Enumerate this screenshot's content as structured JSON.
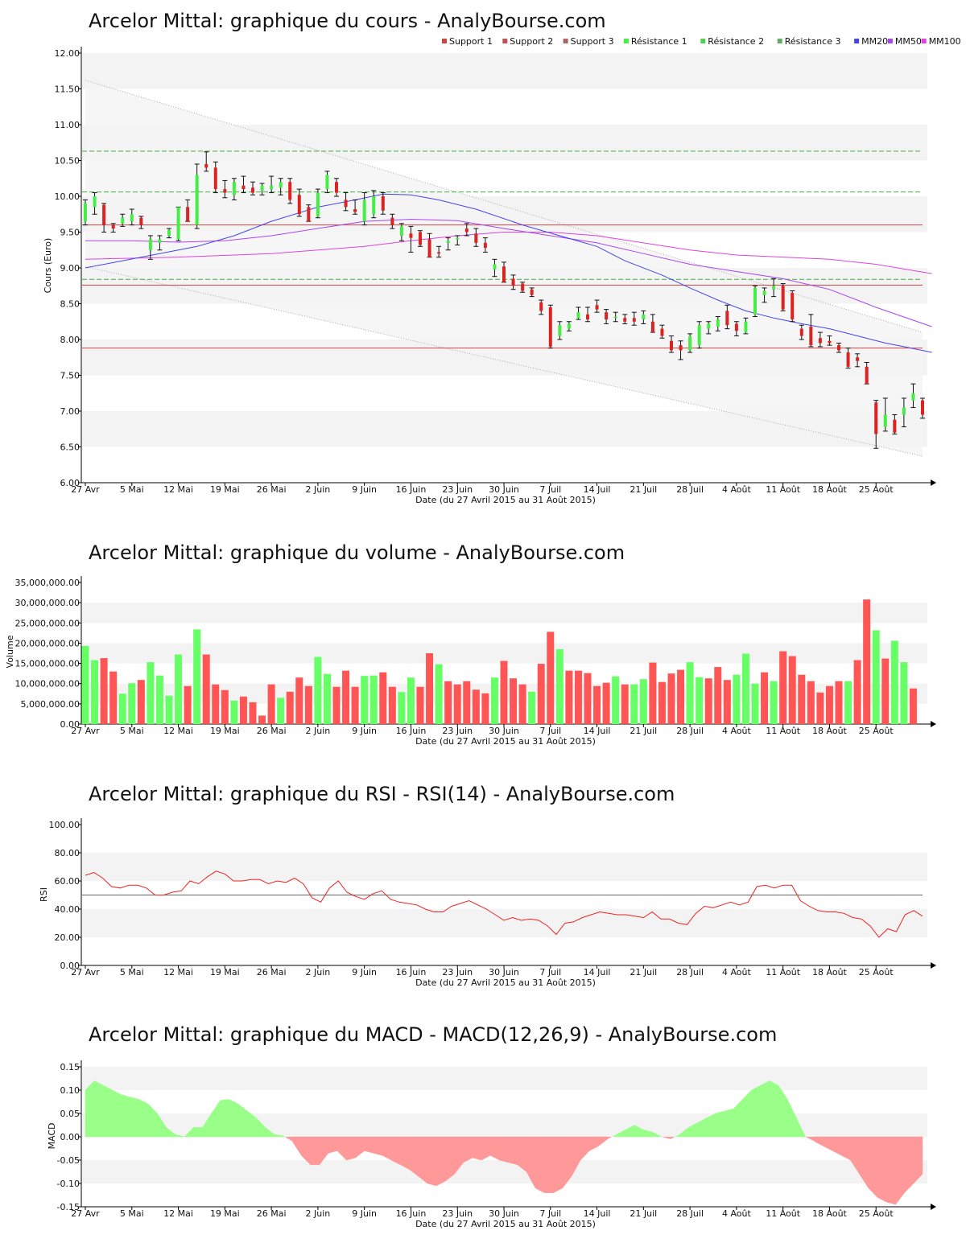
{
  "colors": {
    "up": "#44ee44",
    "down": "#dd2222",
    "wick": "#111111",
    "support": "#cc4444",
    "resistance": "#44aa44",
    "mm20": "#4444ee",
    "mm50": "#aa44ee",
    "mm100": "#dd44dd",
    "vol_up": "#66ff66",
    "vol_down": "#ff5555",
    "rsi": "#ee2222",
    "macd_pos": "#99ff88",
    "macd_neg": "#ff9999",
    "band_light": "#f3f3f3",
    "channel": "#f4f4f4"
  },
  "x_labels": [
    "27 Avr",
    "5 Mai",
    "12 Mai",
    "19 Mai",
    "26 Mai",
    "2 Juin",
    "9 Juin",
    "16 Juin",
    "23 Juin",
    "30 Juin",
    "7 Juil",
    "14 Juil",
    "21 Juil",
    "28 Juil",
    "4 Août",
    "11 Août",
    "18 Août",
    "25 Août"
  ],
  "x_label_days": [
    0,
    5,
    10,
    15,
    20,
    25,
    30,
    35,
    40,
    45,
    50,
    55,
    60,
    65,
    70,
    75,
    80,
    85
  ],
  "date_caption": "Date (du 27 Avril 2015 au 31 Août 2015)",
  "chart_data": [
    {
      "type": "candlestick",
      "title": "Arcelor Mittal: graphique du cours - AnalyBourse.com",
      "ylabel": "Cours (Euro)",
      "ylim": [
        6.0,
        12.0
      ],
      "yticks": [
        "6.00",
        "6.50",
        "7.00",
        "7.50",
        "8.00",
        "8.50",
        "9.00",
        "9.50",
        "10.00",
        "10.50",
        "11.00",
        "11.50",
        "12.00"
      ],
      "legend": [
        "Support 1",
        "Support 2",
        "Support 3",
        "Résistance 1",
        "Résistance 2",
        "Résistance 3",
        "MM20",
        "MM50",
        "MM100"
      ],
      "legend_position": "top-right",
      "support_levels": [
        9.6,
        8.76,
        7.88
      ],
      "resistance_levels": [
        10.63,
        10.06,
        8.84
      ],
      "channel": {
        "upper": [
          11.62,
          8.1
        ],
        "lower": [
          9.02,
          6.37
        ]
      },
      "ohlc": [
        [
          9.65,
          9.95,
          9.6,
          9.9
        ],
        [
          9.85,
          10.05,
          9.75,
          10.0
        ],
        [
          9.88,
          9.9,
          9.5,
          9.6
        ],
        [
          9.6,
          9.62,
          9.5,
          9.55
        ],
        [
          9.62,
          9.75,
          9.58,
          9.7
        ],
        [
          9.65,
          9.82,
          9.6,
          9.75
        ],
        [
          9.7,
          9.72,
          9.55,
          9.6
        ],
        [
          9.25,
          9.45,
          9.12,
          9.4
        ],
        [
          9.35,
          9.45,
          9.25,
          9.4
        ],
        [
          9.45,
          9.55,
          9.42,
          9.53
        ],
        [
          9.4,
          9.85,
          9.38,
          9.85
        ],
        [
          9.85,
          9.95,
          9.65,
          9.65
        ],
        [
          9.6,
          10.45,
          9.55,
          10.3
        ],
        [
          10.45,
          10.62,
          10.35,
          10.4
        ],
        [
          10.4,
          10.48,
          10.05,
          10.1
        ],
        [
          10.1,
          10.22,
          9.98,
          10.05
        ],
        [
          10.02,
          10.25,
          9.95,
          10.2
        ],
        [
          10.15,
          10.28,
          10.05,
          10.1
        ],
        [
          10.12,
          10.2,
          10.02,
          10.05
        ],
        [
          10.08,
          10.18,
          10.02,
          10.15
        ],
        [
          10.1,
          10.28,
          10.05,
          10.15
        ],
        [
          10.12,
          10.25,
          10.02,
          10.2
        ],
        [
          10.2,
          10.25,
          9.9,
          9.95
        ],
        [
          10.02,
          10.1,
          9.72,
          9.75
        ],
        [
          9.85,
          9.88,
          9.65,
          9.65
        ],
        [
          9.72,
          10.1,
          9.7,
          10.05
        ],
        [
          10.1,
          10.35,
          10.05,
          10.3
        ],
        [
          10.2,
          10.25,
          10.0,
          10.05
        ],
        [
          9.95,
          10.05,
          9.8,
          9.85
        ],
        [
          9.82,
          9.95,
          9.75,
          9.78
        ],
        [
          9.65,
          10.05,
          9.6,
          9.95
        ],
        [
          9.75,
          10.08,
          9.7,
          10.0
        ],
        [
          10.0,
          10.05,
          9.75,
          9.8
        ],
        [
          9.7,
          9.75,
          9.55,
          9.6
        ],
        [
          9.45,
          9.62,
          9.38,
          9.58
        ],
        [
          9.48,
          9.58,
          9.22,
          9.42
        ],
        [
          9.5,
          9.52,
          9.3,
          9.32
        ],
        [
          9.4,
          9.48,
          9.15,
          9.15
        ],
        [
          9.22,
          9.3,
          9.15,
          9.2
        ],
        [
          9.35,
          9.42,
          9.25,
          9.38
        ],
        [
          9.4,
          9.45,
          9.32,
          9.42
        ],
        [
          9.55,
          9.62,
          9.45,
          9.5
        ],
        [
          9.48,
          9.55,
          9.3,
          9.35
        ],
        [
          9.35,
          9.42,
          9.22,
          9.28
        ],
        [
          8.98,
          9.12,
          8.88,
          9.05
        ],
        [
          9.02,
          9.08,
          8.8,
          8.8
        ],
        [
          8.85,
          8.9,
          8.7,
          8.75
        ],
        [
          8.78,
          8.8,
          8.66,
          8.68
        ],
        [
          8.7,
          8.72,
          8.6,
          8.62
        ],
        [
          8.52,
          8.55,
          8.35,
          8.4
        ],
        [
          8.45,
          8.48,
          7.88,
          7.9
        ],
        [
          8.05,
          8.25,
          8.0,
          8.2
        ],
        [
          8.15,
          8.25,
          8.12,
          8.22
        ],
        [
          8.3,
          8.45,
          8.28,
          8.38
        ],
        [
          8.35,
          8.45,
          8.25,
          8.28
        ],
        [
          8.48,
          8.55,
          8.38,
          8.42
        ],
        [
          8.38,
          8.42,
          8.22,
          8.28
        ],
        [
          8.3,
          8.38,
          8.25,
          8.32
        ],
        [
          8.3,
          8.35,
          8.22,
          8.25
        ],
        [
          8.3,
          8.38,
          8.2,
          8.25
        ],
        [
          8.28,
          8.4,
          8.22,
          8.35
        ],
        [
          8.25,
          8.35,
          8.1,
          8.1
        ],
        [
          8.15,
          8.2,
          8.02,
          8.05
        ],
        [
          7.98,
          8.05,
          7.82,
          7.85
        ],
        [
          7.92,
          7.98,
          7.72,
          7.85
        ],
        [
          7.85,
          8.08,
          7.82,
          8.05
        ],
        [
          7.92,
          8.25,
          7.88,
          8.2
        ],
        [
          8.15,
          8.25,
          8.08,
          8.22
        ],
        [
          8.18,
          8.32,
          8.12,
          8.28
        ],
        [
          8.4,
          8.48,
          8.15,
          8.2
        ],
        [
          8.22,
          8.25,
          8.05,
          8.12
        ],
        [
          8.1,
          8.3,
          8.08,
          8.25
        ],
        [
          8.35,
          8.75,
          8.32,
          8.72
        ],
        [
          8.62,
          8.72,
          8.52,
          8.68
        ],
        [
          8.7,
          8.85,
          8.6,
          8.75
        ],
        [
          8.75,
          8.78,
          8.4,
          8.42
        ],
        [
          8.65,
          8.68,
          8.25,
          8.28
        ],
        [
          8.15,
          8.2,
          8.0,
          8.05
        ],
        [
          8.18,
          8.35,
          7.9,
          7.92
        ],
        [
          8.02,
          8.1,
          7.9,
          7.95
        ],
        [
          7.98,
          8.05,
          7.92,
          7.95
        ],
        [
          7.92,
          7.95,
          7.82,
          7.85
        ],
        [
          7.82,
          7.88,
          7.6,
          7.62
        ],
        [
          7.75,
          7.8,
          7.62,
          7.7
        ],
        [
          7.62,
          7.68,
          7.38,
          7.38
        ],
        [
          7.12,
          7.15,
          6.48,
          6.68
        ],
        [
          6.78,
          7.18,
          6.72,
          6.95
        ],
        [
          6.88,
          6.95,
          6.68,
          6.7
        ],
        [
          6.95,
          7.18,
          6.78,
          7.05
        ],
        [
          7.15,
          7.38,
          7.05,
          7.25
        ],
        [
          7.15,
          7.18,
          6.9,
          6.95
        ]
      ],
      "mm20": [
        9.0,
        9.1,
        9.2,
        9.3,
        9.45,
        9.65,
        9.85,
        9.95,
        10.03,
        10.02,
        9.95,
        9.82,
        9.6,
        9.45,
        9.3,
        9.1,
        8.9,
        8.72,
        8.55,
        8.4,
        8.3,
        8.22,
        8.15,
        8.05,
        7.95,
        7.9,
        7.82
      ],
      "mm20_days": [
        0,
        4,
        8,
        12,
        16,
        20,
        25,
        29,
        32,
        35,
        38,
        42,
        47,
        51,
        55,
        58,
        62,
        65,
        68,
        71,
        74,
        77,
        80,
        83,
        86,
        88,
        91
      ],
      "mm50": [
        9.38,
        9.38,
        9.36,
        9.38,
        9.45,
        9.55,
        9.65,
        9.68,
        9.66,
        9.55,
        9.45,
        9.35,
        9.2,
        9.05,
        8.95,
        8.85,
        8.7,
        8.45,
        8.18
      ],
      "mm50_days": [
        0,
        5,
        10,
        15,
        20,
        25,
        30,
        35,
        40,
        45,
        50,
        55,
        60,
        65,
        70,
        75,
        80,
        85,
        91
      ],
      "mm100": [
        9.12,
        9.15,
        9.2,
        9.3,
        9.38,
        9.45,
        9.5,
        9.5,
        9.45,
        9.35,
        9.25,
        9.18,
        9.12,
        9.05,
        8.92
      ],
      "mm100_days": [
        0,
        10,
        20,
        30,
        35,
        40,
        45,
        50,
        55,
        60,
        65,
        70,
        80,
        85,
        91
      ]
    },
    {
      "type": "bar",
      "title": "Arcelor Mittal: graphique du volume - AnalyBourse.com",
      "ylabel": "Volume",
      "ylim": [
        0,
        35000000
      ],
      "yticks": [
        "0.00",
        "5,000,000.00",
        "10,000,000.00",
        "15,000,000.00",
        "20,000,000.00",
        "25,000,000.00",
        "30,000,000.00",
        "35,000,000.00"
      ],
      "values": [
        19.3,
        15.8,
        16.3,
        13.0,
        7.5,
        10.1,
        10.9,
        15.3,
        12.0,
        7.0,
        17.2,
        9.4,
        23.4,
        17.2,
        9.8,
        8.4,
        5.8,
        6.8,
        5.4,
        2.1,
        9.8,
        6.5,
        8.0,
        11.5,
        9.4,
        16.6,
        12.4,
        9.2,
        13.2,
        9.2,
        11.9,
        12.0,
        12.8,
        9.2,
        7.9,
        11.5,
        9.2,
        17.5,
        14.8,
        10.6,
        9.8,
        10.6,
        8.5,
        7.6,
        11.5,
        15.6,
        11.3,
        9.8,
        8.0,
        14.9,
        22.8,
        18.5,
        13.2,
        13.2,
        12.6,
        9.4,
        10.2,
        11.8,
        9.8,
        9.8,
        11.1,
        15.2,
        10.4,
        12.5,
        13.4,
        15.3,
        11.6,
        11.3,
        14.1,
        10.9,
        12.2,
        17.4,
        10.0,
        12.8,
        10.6,
        18.0,
        16.8,
        12.2,
        10.6,
        7.8,
        9.4,
        10.6,
        10.6,
        15.8,
        30.8,
        23.2,
        16.2,
        20.6,
        15.3,
        8.8
      ],
      "values_unit": "millions",
      "up": [
        1,
        1,
        0,
        0,
        1,
        1,
        0,
        1,
        1,
        1,
        1,
        0,
        1,
        0,
        0,
        0,
        1,
        0,
        0,
        0,
        0,
        1,
        0,
        0,
        0,
        1,
        1,
        0,
        0,
        0,
        1,
        1,
        0,
        0,
        1,
        1,
        0,
        0,
        1,
        0,
        0,
        0,
        0,
        0,
        1,
        0,
        0,
        0,
        1,
        0,
        0,
        1,
        0,
        0,
        0,
        0,
        0,
        1,
        0,
        1,
        1,
        0,
        0,
        0,
        0,
        1,
        1,
        0,
        0,
        0,
        1,
        1,
        1,
        0,
        1,
        0,
        0,
        0,
        0,
        0,
        0,
        0,
        1,
        0,
        0,
        1,
        0,
        1,
        1,
        0
      ]
    },
    {
      "type": "line",
      "title": "Arcelor Mittal: graphique du RSI - RSI(14) - AnalyBourse.com",
      "ylabel": "RSI",
      "ylim": [
        0,
        100
      ],
      "yticks": [
        "0.00",
        "20.00",
        "40.00",
        "60.00",
        "80.00",
        "100.00"
      ],
      "reference_line": 50,
      "values": [
        64,
        66,
        62,
        56,
        55,
        57,
        57,
        55,
        50,
        50,
        52,
        53,
        60,
        58,
        63,
        67,
        65,
        60,
        60,
        61,
        61,
        58,
        60,
        59,
        62,
        58,
        48,
        45,
        55,
        60,
        52,
        49,
        47,
        51,
        53,
        47,
        45,
        44,
        43,
        40,
        38,
        38,
        42,
        44,
        46,
        43,
        40,
        36,
        32,
        34,
        32,
        33,
        32,
        28,
        22,
        30,
        31,
        34,
        36,
        38,
        37,
        36,
        36,
        35,
        34,
        38,
        33,
        33,
        30,
        29,
        37,
        42,
        41,
        43,
        45,
        43,
        45,
        56,
        57,
        55,
        57,
        57,
        46,
        42,
        39,
        38,
        38,
        37,
        34,
        33,
        28,
        20,
        26,
        24,
        36,
        39,
        35
      ]
    },
    {
      "type": "area",
      "title": "Arcelor Mittal: graphique du MACD - MACD(12,26,9) - AnalyBourse.com",
      "ylabel": "MACD",
      "ylim": [
        -0.15,
        0.15
      ],
      "yticks": [
        "-0.15",
        "-0.10",
        "-0.05",
        "0.00",
        "0.05",
        "0.10",
        "0.15"
      ],
      "values": [
        0.1,
        0.12,
        0.11,
        0.1,
        0.09,
        0.085,
        0.08,
        0.07,
        0.05,
        0.02,
        0.005,
        0.0,
        0.02,
        0.02,
        0.05,
        0.078,
        0.08,
        0.07,
        0.055,
        0.04,
        0.02,
        0.005,
        0.002,
        -0.01,
        -0.04,
        -0.06,
        -0.06,
        -0.035,
        -0.03,
        -0.05,
        -0.045,
        -0.03,
        -0.035,
        -0.04,
        -0.05,
        -0.06,
        -0.07,
        -0.085,
        -0.1,
        -0.105,
        -0.095,
        -0.08,
        -0.055,
        -0.045,
        -0.05,
        -0.04,
        -0.05,
        -0.055,
        -0.06,
        -0.075,
        -0.11,
        -0.12,
        -0.12,
        -0.11,
        -0.085,
        -0.05,
        -0.03,
        -0.02,
        -0.005,
        0.005,
        0.015,
        0.025,
        0.015,
        0.01,
        0.0,
        -0.005,
        0.005,
        0.02,
        0.03,
        0.04,
        0.05,
        0.055,
        0.06,
        0.08,
        0.1,
        0.11,
        0.12,
        0.11,
        0.08,
        0.04,
        0.0,
        -0.01,
        -0.02,
        -0.03,
        -0.04,
        -0.05,
        -0.08,
        -0.11,
        -0.13,
        -0.14,
        -0.145,
        -0.12,
        -0.1,
        -0.08
      ]
    }
  ]
}
